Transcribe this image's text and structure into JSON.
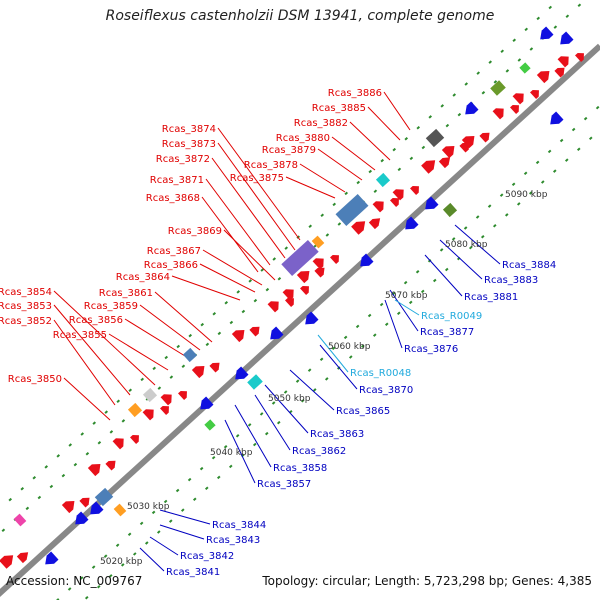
{
  "title": "Roseiflexus castenholzii DSM 13941, complete genome",
  "footer": {
    "accession": "Accession: NC_009767",
    "topology": "Topology: circular; Length: 5,723,298 bp; Genes: 4,385"
  },
  "colors": {
    "backbone": "#888888",
    "tick": "#2e8b2e",
    "forward_gene": "#e8101a",
    "reverse_gene": "#1010e0",
    "forward_label": "#e00000",
    "reverse_label": "#0000c0",
    "rna_label": "#22aadd",
    "line_forward": "#e00000",
    "line_reverse": "#0000c0",
    "line_rna": "#22aadd"
  },
  "scale_labels": [
    "5020 kbp",
    "5030 kbp",
    "5040 kbp",
    "5050 kbp",
    "5060 kbp",
    "5070 kbp",
    "5080 kbp",
    "5090 kbp"
  ],
  "forward_labels": [
    "Rcas_3886",
    "Rcas_3885",
    "Rcas_3882",
    "Rcas_3880",
    "Rcas_3879",
    "Rcas_3878",
    "Rcas_3875",
    "Rcas_3874",
    "Rcas_3873",
    "Rcas_3872",
    "Rcas_3871",
    "Rcas_3868",
    "Rcas_3869",
    "Rcas_3867",
    "Rcas_3866",
    "Rcas_3864",
    "Rcas_3861",
    "Rcas_3859",
    "Rcas_3856",
    "Rcas_3855",
    "Rcas_3854",
    "Rcas_3853",
    "Rcas_3852",
    "Rcas_3850"
  ],
  "reverse_labels": [
    "Rcas_3884",
    "Rcas_3883",
    "Rcas_3881",
    "Rcas_3877",
    "Rcas_3876",
    "Rcas_3870",
    "Rcas_3865",
    "Rcas_3863",
    "Rcas_3862",
    "Rcas_3858",
    "Rcas_3857",
    "Rcas_3844",
    "Rcas_3843",
    "Rcas_3842",
    "Rcas_3841"
  ],
  "rna_labels": [
    "Rcas_R0049",
    "Rcas_R0048"
  ]
}
